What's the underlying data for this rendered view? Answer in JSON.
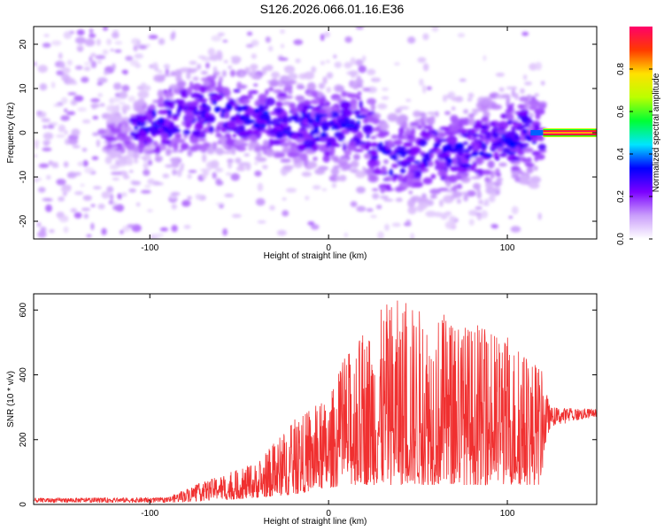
{
  "title": "S126.2026.066.01.16.E36",
  "chart_data": [
    {
      "type": "heatmap",
      "xlabel": "Height of straight line (km)",
      "ylabel": "Frequency (Hz)",
      "xlim": [
        -165,
        150
      ],
      "ylim": [
        -24,
        24
      ],
      "xticks": [
        -100,
        0,
        100
      ],
      "yticks": [
        -20,
        -10,
        0,
        10,
        20
      ],
      "colorbar": {
        "label": "Normalized spectral amplitude",
        "range": [
          0,
          1
        ],
        "ticks": [
          "0.0",
          "0.2",
          "0.4",
          "0.6",
          "0.8"
        ],
        "ramp": [
          "#ffffff",
          "#c99dfb",
          "#7b00ff",
          "#0000ff",
          "#00e5ff",
          "#00ff33",
          "#bbff00",
          "#ffe100",
          "#ff3a00",
          "#ff006a"
        ]
      },
      "ridge": [
        {
          "x": -165,
          "f": -2
        },
        {
          "x": -120,
          "f": -1
        },
        {
          "x": -80,
          "f": 4
        },
        {
          "x": -60,
          "f": 5
        },
        {
          "x": -30,
          "f": 3
        },
        {
          "x": 0,
          "f": 1
        },
        {
          "x": 20,
          "f": 2
        },
        {
          "x": 30,
          "f": -6
        },
        {
          "x": 60,
          "f": -5
        },
        {
          "x": 80,
          "f": -4
        },
        {
          "x": 100,
          "f": -1
        },
        {
          "x": 115,
          "f": 0
        },
        {
          "x": 150,
          "f": 0
        }
      ],
      "tone": {
        "x_start": 120,
        "x_end": 150,
        "f": 0,
        "amplitude": 1.0
      }
    },
    {
      "type": "line",
      "xlabel": "Height of straight line (km)",
      "ylabel": "SNR (10 * v/v)",
      "xlim": [
        -165,
        150
      ],
      "ylim": [
        0,
        650
      ],
      "xticks": [
        -100,
        0,
        100
      ],
      "yticks": [
        0,
        200,
        400,
        600
      ],
      "color": "#f03030",
      "envelope": [
        {
          "x": -165,
          "base": 5,
          "peak": 20
        },
        {
          "x": -90,
          "base": 5,
          "peak": 22
        },
        {
          "x": -75,
          "base": 8,
          "peak": 60
        },
        {
          "x": -40,
          "base": 20,
          "peak": 130
        },
        {
          "x": -20,
          "base": 30,
          "peak": 260
        },
        {
          "x": 0,
          "base": 50,
          "peak": 330
        },
        {
          "x": 10,
          "base": 60,
          "peak": 470
        },
        {
          "x": 35,
          "base": 60,
          "peak": 640
        },
        {
          "x": 60,
          "base": 60,
          "peak": 600
        },
        {
          "x": 80,
          "base": 60,
          "peak": 560
        },
        {
          "x": 100,
          "base": 60,
          "peak": 520
        },
        {
          "x": 118,
          "base": 60,
          "peak": 440
        },
        {
          "x": 124,
          "base": 240,
          "peak": 300
        },
        {
          "x": 150,
          "base": 270,
          "peak": 295
        }
      ]
    }
  ]
}
